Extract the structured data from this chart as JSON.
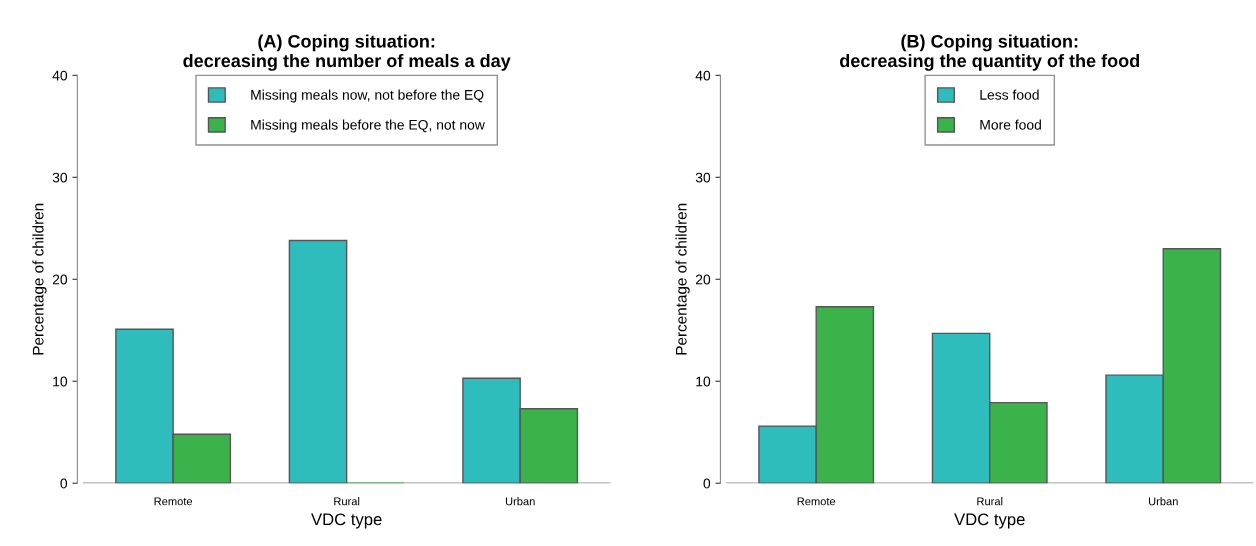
{
  "chart_data": [
    {
      "type": "bar",
      "title": "(A) Coping situation:\ndecreasing the number of meals a day",
      "xlabel": "VDC type",
      "ylabel": "Percentage of children",
      "categories": [
        "Remote",
        "Rural",
        "Urban"
      ],
      "series": [
        {
          "name": "Missing meals now, not before the EQ",
          "color": "#2ebcbc",
          "values": [
            15.1,
            23.8,
            10.3
          ]
        },
        {
          "name": "Missing meals before the EQ, not now",
          "color": "#3bb34a",
          "values": [
            4.8,
            0,
            7.3
          ]
        }
      ],
      "ylim": [
        0,
        40
      ],
      "yticks": [
        0,
        10,
        20,
        30,
        40
      ],
      "grid": false,
      "legend": "top"
    },
    {
      "type": "bar",
      "title": "(B) Coping situation:\ndecreasing the quantity of the food",
      "xlabel": "VDC type",
      "ylabel": "Percentage of children",
      "categories": [
        "Remote",
        "Rural",
        "Urban"
      ],
      "series": [
        {
          "name": "Less food",
          "color": "#2ebcbc",
          "values": [
            5.6,
            14.7,
            10.6
          ]
        },
        {
          "name": "More food",
          "color": "#3bb34a",
          "values": [
            17.3,
            7.9,
            23.0
          ]
        }
      ],
      "ylim": [
        0,
        40
      ],
      "yticks": [
        0,
        10,
        20,
        30,
        40
      ],
      "grid": false,
      "legend": "top"
    }
  ]
}
